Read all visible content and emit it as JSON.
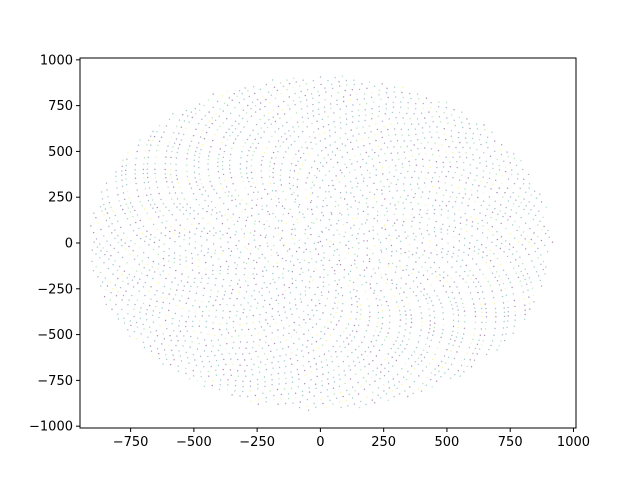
{
  "chart_data": {
    "type": "scatter",
    "title": "",
    "xlabel": "",
    "ylabel": "",
    "xlim": [
      -950,
      1010
    ],
    "ylim": [
      -1010,
      1010
    ],
    "xticks": [
      -750,
      -500,
      -250,
      0,
      250,
      500,
      750,
      1000
    ],
    "yticks": [
      -1000,
      -750,
      -500,
      -250,
      0,
      250,
      500,
      750,
      1000
    ],
    "xtick_labels": [
      "−750",
      "−500",
      "−250",
      "0",
      "250",
      "500",
      "750",
      "1000"
    ],
    "ytick_labels": [
      "−1000",
      "−750",
      "−500",
      "−250",
      "0",
      "250",
      "500",
      "750",
      "1000"
    ],
    "grid": false,
    "legend": "none",
    "colormap": [
      "#440154",
      "#3b528b",
      "#21918c",
      "#5ec962",
      "#fde725"
    ],
    "point_alpha": 0.45,
    "description_of_points": "Dense sunflower/phyllotaxis-like spiral of small dots filling an ellipse, x extent about -920 to 920, y extent about -920 to 920, color by viridis colormap",
    "points": [
      {
        "x": 0,
        "y": 0
      },
      {
        "x": 50,
        "y": 40
      },
      {
        "x": -60,
        "y": 80
      },
      {
        "x": 100,
        "y": -50
      },
      {
        "x": -120,
        "y": -90
      },
      {
        "x": 200,
        "y": 150
      },
      {
        "x": -250,
        "y": 180
      },
      {
        "x": 300,
        "y": -200
      },
      {
        "x": -350,
        "y": -250
      },
      {
        "x": 450,
        "y": 300
      },
      {
        "x": -500,
        "y": 350
      },
      {
        "x": 600,
        "y": -400
      },
      {
        "x": -650,
        "y": -450
      },
      {
        "x": 750,
        "y": 300
      },
      {
        "x": -800,
        "y": 200
      },
      {
        "x": 850,
        "y": -150
      },
      {
        "x": -880,
        "y": -100
      },
      {
        "x": 900,
        "y": 50
      },
      {
        "x": -900,
        "y": 0
      },
      {
        "x": 0,
        "y": 900
      },
      {
        "x": 0,
        "y": -900
      },
      {
        "x": 100,
        "y": 920
      },
      {
        "x": -100,
        "y": -920
      }
    ]
  }
}
